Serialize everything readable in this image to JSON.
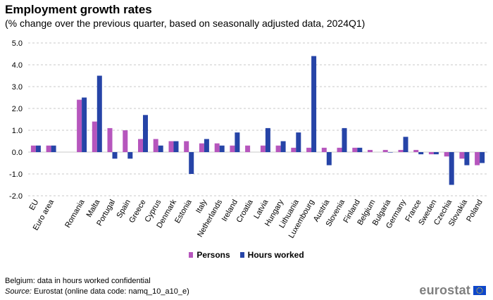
{
  "title": "Employment growth rates",
  "subtitle": "(% change over the previous quarter, based on seasonally adjusted data, 2024Q1)",
  "footnote": "Belgium: data in hours worked confidential",
  "source": {
    "label": "Source:",
    "text": "Eurostat (online data code: namq_10_a10_e)"
  },
  "logo": {
    "text": "eurostat",
    "flag_icon": "eu-flag-icon"
  },
  "chart_data": {
    "type": "bar",
    "categories": [
      "EU",
      "Euro area",
      "",
      "Romania",
      "Malta",
      "Portugal",
      "Spain",
      "Greece",
      "Cyprus",
      "Denmark",
      "Estonia",
      "Italy",
      "Netherlands",
      "Ireland",
      "Croatia",
      "Latvia",
      "Hungary",
      "Lithuania",
      "Luxembourg",
      "Austria",
      "Slovenia",
      "Finland",
      "Belgium",
      "Bulgaria",
      "Germany",
      "France",
      "Sweden",
      "Czechia",
      "Slovakia",
      "Poland"
    ],
    "series": [
      {
        "name": "Persons",
        "color": "#b656bd",
        "values": [
          0.3,
          0.3,
          null,
          2.4,
          1.4,
          1.1,
          1.0,
          0.6,
          0.6,
          0.5,
          0.5,
          0.4,
          0.4,
          0.3,
          0.3,
          0.3,
          0.3,
          0.2,
          0.2,
          0.2,
          0.2,
          0.2,
          0.1,
          0.1,
          0.1,
          0.1,
          -0.1,
          -0.2,
          -0.3,
          -0.6
        ]
      },
      {
        "name": "Hours worked",
        "color": "#2644a7",
        "values": [
          0.3,
          0.3,
          null,
          2.5,
          3.5,
          -0.3,
          -0.3,
          1.7,
          0.3,
          0.5,
          -1.0,
          0.6,
          0.3,
          0.9,
          null,
          1.1,
          0.5,
          0.9,
          4.4,
          -0.6,
          1.1,
          0.2,
          null,
          0.0,
          0.7,
          -0.1,
          -0.1,
          -1.5,
          -0.6,
          -0.5
        ]
      }
    ],
    "y_ticks": [
      "5.0",
      "4.0",
      "3.0",
      "2.0",
      "1.0",
      "0.0",
      "-1.0",
      "-2.0"
    ],
    "ylim": [
      -2.0,
      5.0
    ],
    "grid": "horizontal dashed",
    "legend_position": "bottom"
  }
}
